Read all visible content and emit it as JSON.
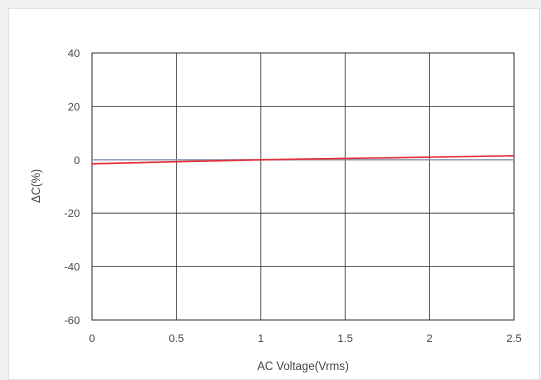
{
  "chart_data": {
    "type": "line",
    "title": "",
    "xlabel": "AC Voltage(Vrms)",
    "ylabel": "ΔC(%)",
    "xlim": [
      0,
      2.5
    ],
    "ylim": [
      -60,
      40
    ],
    "x_ticks": [
      0,
      0.5,
      1,
      1.5,
      2,
      2.5
    ],
    "y_ticks": [
      40,
      20,
      0,
      -20,
      -40,
      -60
    ],
    "x_tick_labels": [
      "0",
      "0.5",
      "1",
      "1.5",
      "2",
      "2.5"
    ],
    "y_tick_labels": [
      "40",
      "20",
      "0",
      "-20",
      "-40",
      "-60"
    ],
    "grid": true,
    "legend": "none",
    "series": [
      {
        "color": "#e0303a",
        "x": [
          0,
          0.5,
          1,
          1.5,
          2,
          2.5
        ],
        "y": [
          -1.5,
          -0.7,
          0,
          0.5,
          1.0,
          1.5
        ]
      }
    ],
    "reference_line": {
      "y": 0,
      "color": "#8a9bb0"
    }
  }
}
